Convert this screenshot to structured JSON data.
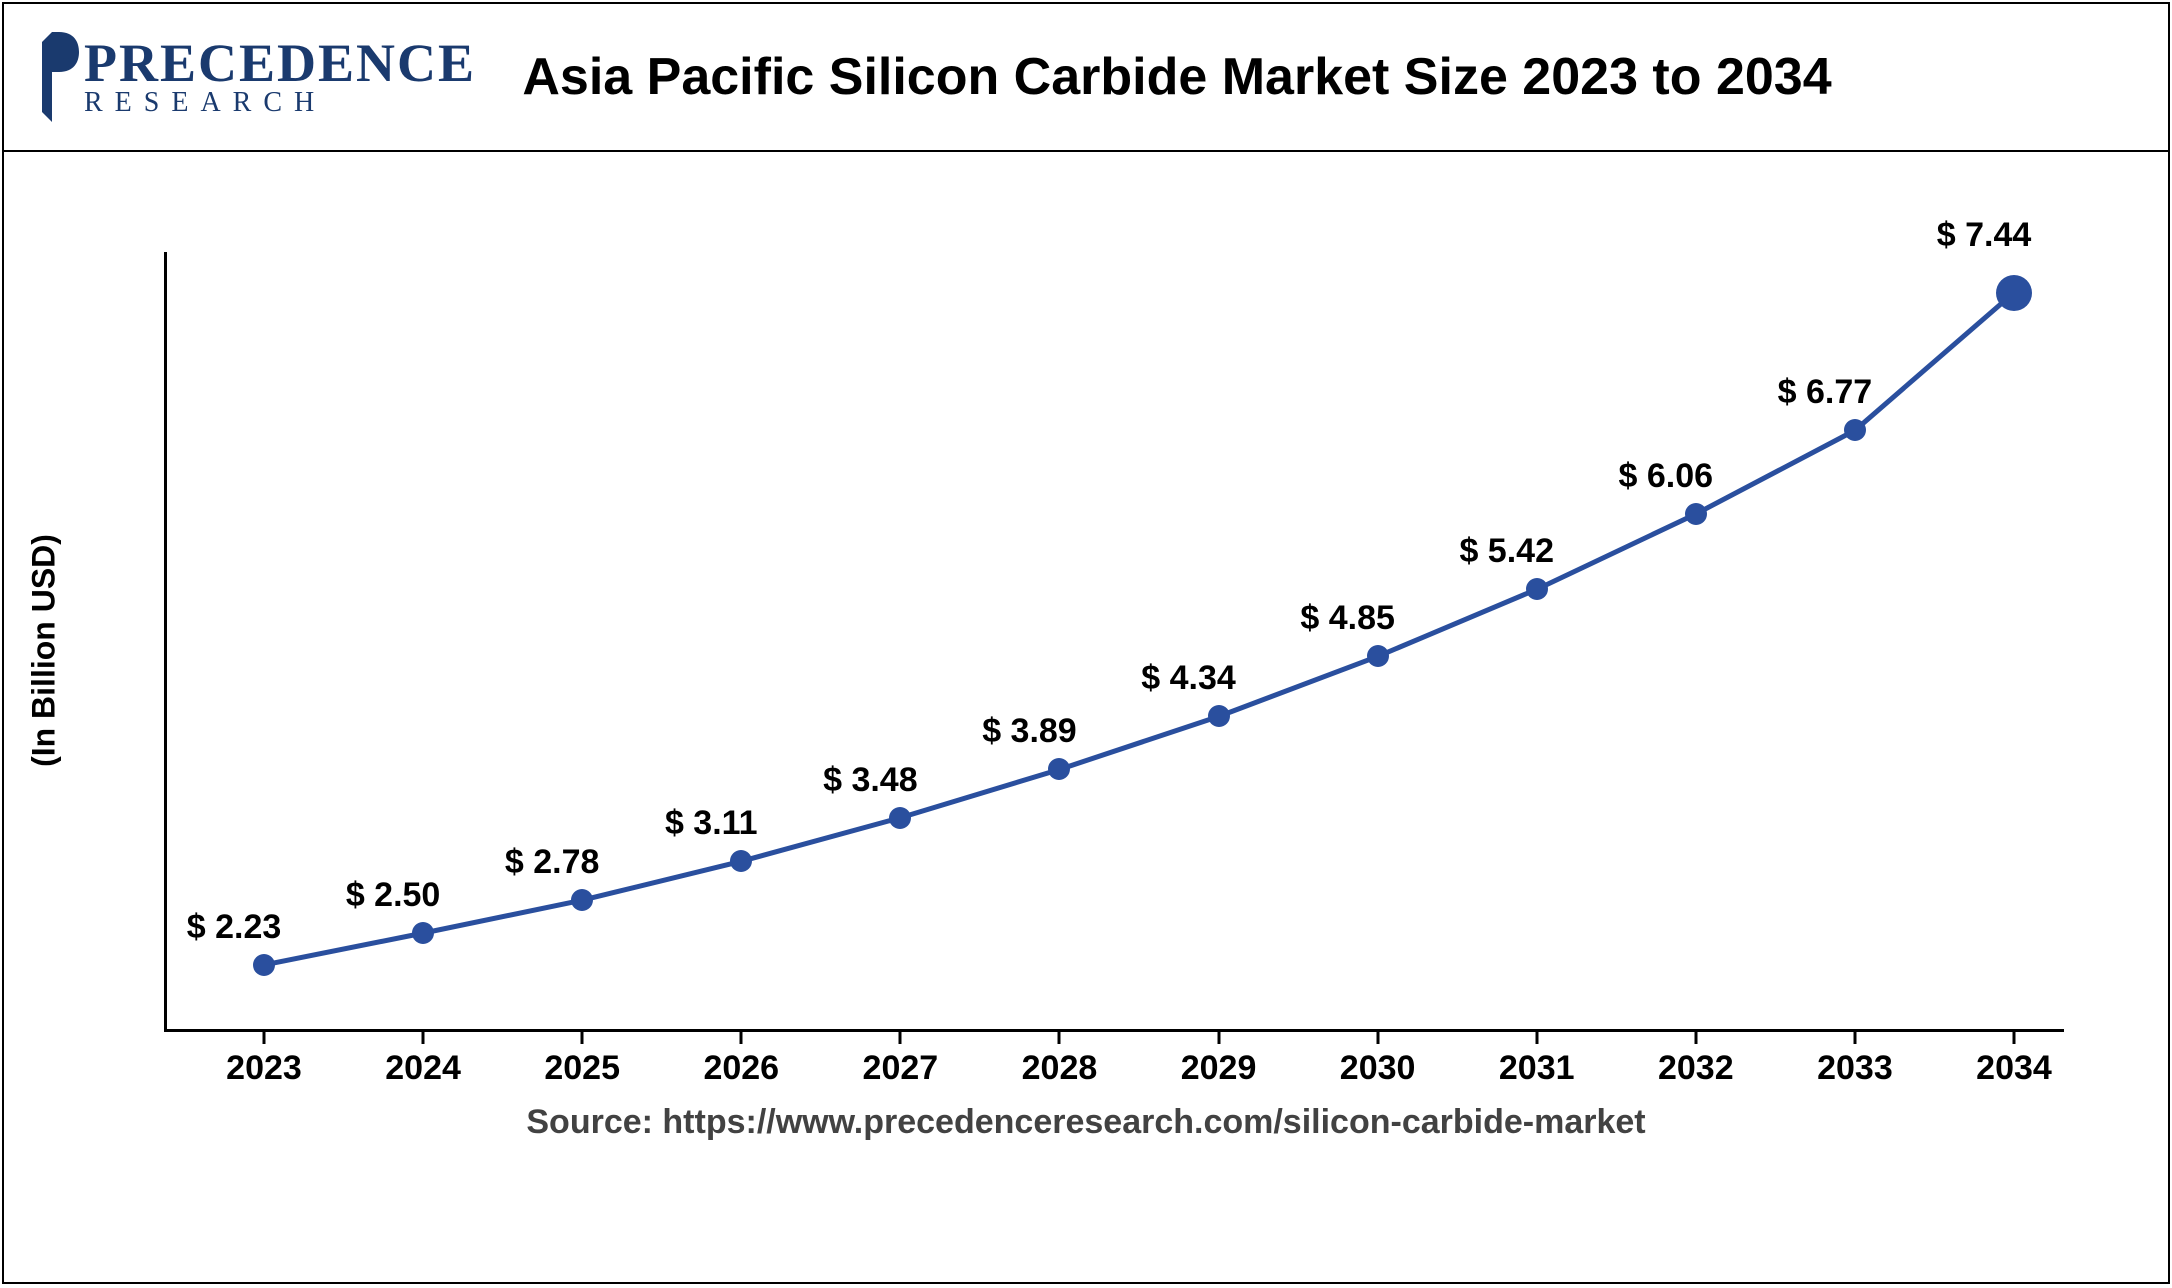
{
  "header": {
    "logo_main": "PRECEDENCE",
    "logo_sub": "RESEARCH",
    "title": "Asia Pacific Silicon Carbide Market Size 2023 to 2034"
  },
  "chart": {
    "type": "line",
    "y_label": "(In Billion USD)",
    "ylim": [
      2.0,
      8.2
    ],
    "line_color": "#2a4f9e",
    "line_width": 5,
    "marker_color": "#2a4f9e",
    "marker_size": 22,
    "last_marker_size": 36,
    "background_color": "#ffffff",
    "axis_color": "#000000",
    "label_fontsize": 34,
    "title_fontsize": 52,
    "years": [
      "2023",
      "2024",
      "2025",
      "2026",
      "2027",
      "2028",
      "2029",
      "2030",
      "2031",
      "2032",
      "2033",
      "2034"
    ],
    "values": [
      2.23,
      2.5,
      2.78,
      3.11,
      3.48,
      3.89,
      4.34,
      4.85,
      5.42,
      6.06,
      6.77,
      7.44
    ],
    "labels": [
      "$ 2.23",
      "$ 2.50",
      "$ 2.78",
      "$ 3.11",
      "$ 3.48",
      "$ 3.89",
      "$ 4.34",
      "$ 4.85",
      "$ 5.42",
      "$ 6.06",
      "$ 6.77",
      "$ 7.44"
    ],
    "label_y_adjust": [
      0,
      0,
      0,
      0,
      0,
      0,
      0,
      0,
      0,
      0,
      0,
      -20
    ]
  },
  "footer": {
    "source": "Source: https://www.precedenceresearch.com/silicon-carbide-market"
  }
}
